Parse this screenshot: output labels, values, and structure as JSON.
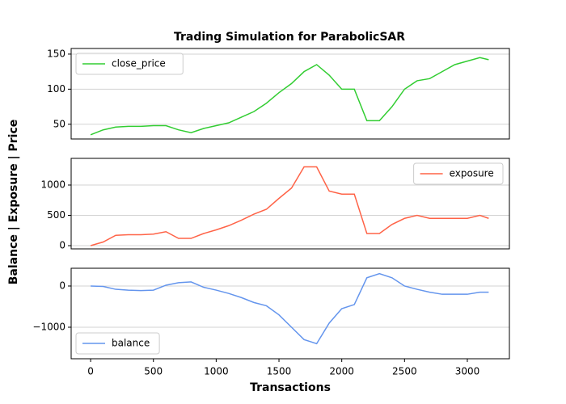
{
  "title": "Trading Simulation for ParabolicSAR",
  "ylabel": "Balance | Exposure | Price",
  "chart_data": [
    {
      "type": "line",
      "legend": "upper left",
      "grid": true,
      "x": [
        0,
        100,
        200,
        300,
        400,
        500,
        600,
        700,
        800,
        900,
        1000,
        1100,
        1200,
        1300,
        1400,
        1500,
        1600,
        1700,
        1800,
        1900,
        2000,
        2100,
        2200,
        2300,
        2400,
        2500,
        2600,
        2700,
        2800,
        2900,
        3000,
        3100,
        3170
      ],
      "xlim": [
        -155,
        3335
      ],
      "ylim": [
        29,
        158
      ],
      "yticks": [
        50,
        100,
        150
      ],
      "series": [
        {
          "name": "close_price",
          "color": "#32cd32",
          "values": [
            35,
            42,
            46,
            47,
            47,
            48,
            48,
            42,
            38,
            44,
            48,
            52,
            60,
            68,
            80,
            95,
            108,
            125,
            135,
            120,
            100,
            100,
            55,
            55,
            75,
            100,
            112,
            115,
            125,
            135,
            140,
            145,
            142
          ]
        }
      ]
    },
    {
      "type": "line",
      "legend": "upper right",
      "grid": true,
      "x": [
        0,
        100,
        200,
        300,
        400,
        500,
        600,
        700,
        800,
        900,
        1000,
        1100,
        1200,
        1300,
        1400,
        1500,
        1600,
        1700,
        1800,
        1900,
        2000,
        2100,
        2200,
        2300,
        2400,
        2500,
        2600,
        2700,
        2800,
        2900,
        3000,
        3100,
        3170
      ],
      "xlim": [
        -155,
        3335
      ],
      "ylim": [
        -53,
        1440
      ],
      "yticks": [
        0,
        500,
        1000
      ],
      "series": [
        {
          "name": "exposure",
          "color": "#ff6347",
          "values": [
            0,
            60,
            170,
            180,
            180,
            190,
            230,
            120,
            120,
            200,
            260,
            330,
            420,
            520,
            600,
            780,
            950,
            1300,
            1300,
            900,
            850,
            850,
            200,
            200,
            350,
            450,
            500,
            450,
            450,
            450,
            450,
            500,
            450
          ]
        }
      ]
    },
    {
      "type": "line",
      "legend": "lower left",
      "grid": true,
      "xlabel": "Transactions",
      "x": [
        0,
        100,
        200,
        300,
        400,
        500,
        600,
        700,
        800,
        900,
        1000,
        1100,
        1200,
        1300,
        1400,
        1500,
        1600,
        1700,
        1800,
        1900,
        2000,
        2100,
        2200,
        2300,
        2400,
        2500,
        2600,
        2700,
        2800,
        2900,
        3000,
        3100,
        3170
      ],
      "xlim": [
        -155,
        3335
      ],
      "xticks": [
        0,
        500,
        1000,
        1500,
        2000,
        2500,
        3000
      ],
      "ylim": [
        -1765,
        431
      ],
      "yticks": [
        {
          "value": -1000,
          "label": "−1000"
        },
        0
      ],
      "series": [
        {
          "name": "balance",
          "color": "#6495ed",
          "values": [
            0,
            -10,
            -80,
            -100,
            -110,
            -100,
            20,
            80,
            100,
            -30,
            -100,
            -180,
            -280,
            -400,
            -480,
            -700,
            -1000,
            -1300,
            -1400,
            -900,
            -550,
            -450,
            200,
            300,
            200,
            0,
            -80,
            -150,
            -200,
            -200,
            -200,
            -150,
            -150
          ]
        }
      ]
    }
  ]
}
